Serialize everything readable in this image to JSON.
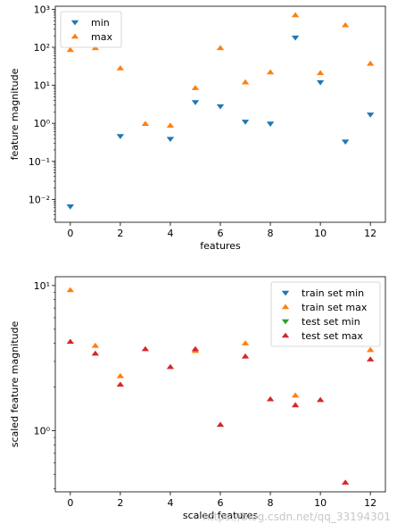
{
  "chart_data": [
    {
      "type": "scatter",
      "xlabel": "features",
      "ylabel": "feature magnitude",
      "yscale": "log",
      "xlim": [
        -0.6,
        12.6
      ],
      "ylim": [
        0.0025,
        1200
      ],
      "xticks": [
        0,
        2,
        4,
        6,
        8,
        10,
        12
      ],
      "xtick_labels": [
        "0",
        "2",
        "4",
        "6",
        "8",
        "10",
        "12"
      ],
      "yticks": [
        0.01,
        0.1,
        1,
        10,
        100,
        1000
      ],
      "ytick_labels": [
        "10⁻²",
        "10⁻¹",
        "10⁰",
        "10¹",
        "10²",
        "10³"
      ],
      "legend_position": "upper-left",
      "series": [
        {
          "name": "min",
          "marker": "triangle-down",
          "color": "#1f77b4",
          "x": [
            0,
            2,
            4,
            5,
            6,
            7,
            8,
            9,
            10,
            11,
            12
          ],
          "y": [
            0.0065,
            0.46,
            0.39,
            3.6,
            2.8,
            1.1,
            0.98,
            180,
            12,
            0.33,
            1.7
          ]
        },
        {
          "name": "max",
          "marker": "triangle-up",
          "color": "#ff7f0e",
          "x": [
            0,
            1,
            2,
            3,
            4,
            5,
            6,
            7,
            8,
            9,
            10,
            11,
            12
          ],
          "y": [
            85,
            95,
            28,
            0.97,
            0.87,
            8.5,
            95,
            12,
            22,
            700,
            21,
            380,
            37
          ]
        }
      ]
    },
    {
      "type": "scatter",
      "xlabel": "scaled features",
      "ylabel": "scaled feature magnitude",
      "yscale": "log",
      "xlim": [
        -0.6,
        12.6
      ],
      "ylim": [
        0.38,
        11.5
      ],
      "xticks": [
        0,
        2,
        4,
        6,
        8,
        10,
        12
      ],
      "xtick_labels": [
        "0",
        "2",
        "4",
        "6",
        "8",
        "10",
        "12"
      ],
      "yticks": [
        1,
        10
      ],
      "ytick_labels": [
        "10⁰",
        "10¹"
      ],
      "legend_position": "upper-right",
      "series": [
        {
          "name": "train set min",
          "marker": "triangle-down",
          "color": "#1f77b4",
          "x": [],
          "y": []
        },
        {
          "name": "train set max",
          "marker": "triangle-up",
          "color": "#ff7f0e",
          "x": [
            0,
            1,
            2,
            5,
            7,
            9,
            12
          ],
          "y": [
            9.3,
            3.85,
            2.38,
            3.55,
            4.0,
            1.75,
            3.6
          ]
        },
        {
          "name": "test set min",
          "marker": "triangle-down",
          "color": "#2ca02c",
          "x": [],
          "y": []
        },
        {
          "name": "test set max",
          "marker": "triangle-up",
          "color": "#d62728",
          "x": [
            0,
            1,
            2,
            3,
            4,
            5,
            6,
            7,
            8,
            9,
            10,
            11,
            12
          ],
          "y": [
            4.1,
            3.4,
            2.08,
            3.65,
            2.75,
            3.65,
            1.1,
            3.25,
            1.65,
            1.5,
            1.63,
            0.44,
            3.1
          ]
        }
      ]
    }
  ],
  "watermark": "https://blog.csdn.net/qq_33194301"
}
